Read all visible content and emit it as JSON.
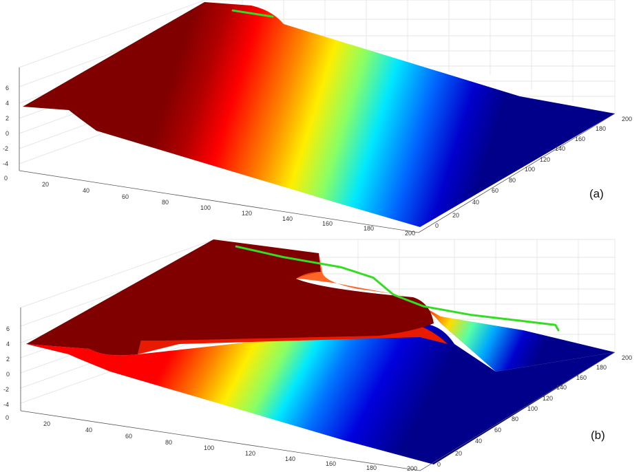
{
  "chart_data": [
    {
      "type": "surface",
      "panel_label": "(a)",
      "colormap": "jet",
      "x_ticks": [
        "0",
        "20",
        "40",
        "60",
        "80",
        "100",
        "120",
        "140",
        "160",
        "180",
        "200"
      ],
      "y_ticks": [
        "0",
        "20",
        "40",
        "60",
        "80",
        "100",
        "120",
        "140",
        "160",
        "180",
        "200"
      ],
      "z_ticks": [
        "-4",
        "-2",
        "0",
        "2",
        "4",
        "6"
      ],
      "xlim": [
        0,
        200
      ],
      "ylim": [
        0,
        200
      ],
      "zlim": [
        -5,
        7
      ],
      "grid": true,
      "path_color": "#33dd22",
      "path": [
        [
          14,
          185
        ],
        [
          34,
          185
        ]
      ],
      "surface_profile": {
        "description_free": true,
        "y_breaks": [
          0,
          20,
          45,
          110,
          155,
          200
        ],
        "z_values": [
          3.5,
          3.5,
          2.5,
          -2.0,
          -4.5,
          -4.5
        ]
      }
    },
    {
      "type": "surface",
      "panel_label": "(b)",
      "colormap": "jet",
      "x_ticks": [
        "0",
        "20",
        "40",
        "60",
        "80",
        "100",
        "120",
        "140",
        "160",
        "180",
        "200"
      ],
      "y_ticks": [
        "0",
        "20",
        "40",
        "60",
        "80",
        "100",
        "120",
        "140",
        "160",
        "180",
        "200"
      ],
      "z_ticks": [
        "-4",
        "-2",
        "0",
        "2",
        "4",
        "6"
      ],
      "xlim": [
        0,
        200
      ],
      "ylim": [
        0,
        200
      ],
      "zlim": [
        -5,
        7
      ],
      "grid": true,
      "path_color": "#33dd22",
      "path": [
        [
          14,
          185
        ],
        [
          40,
          180
        ],
        [
          70,
          178
        ],
        [
          90,
          170
        ],
        [
          110,
          150
        ],
        [
          130,
          140
        ],
        [
          155,
          138
        ],
        [
          175,
          140
        ],
        [
          195,
          142
        ],
        [
          200,
          135
        ]
      ]
    }
  ]
}
